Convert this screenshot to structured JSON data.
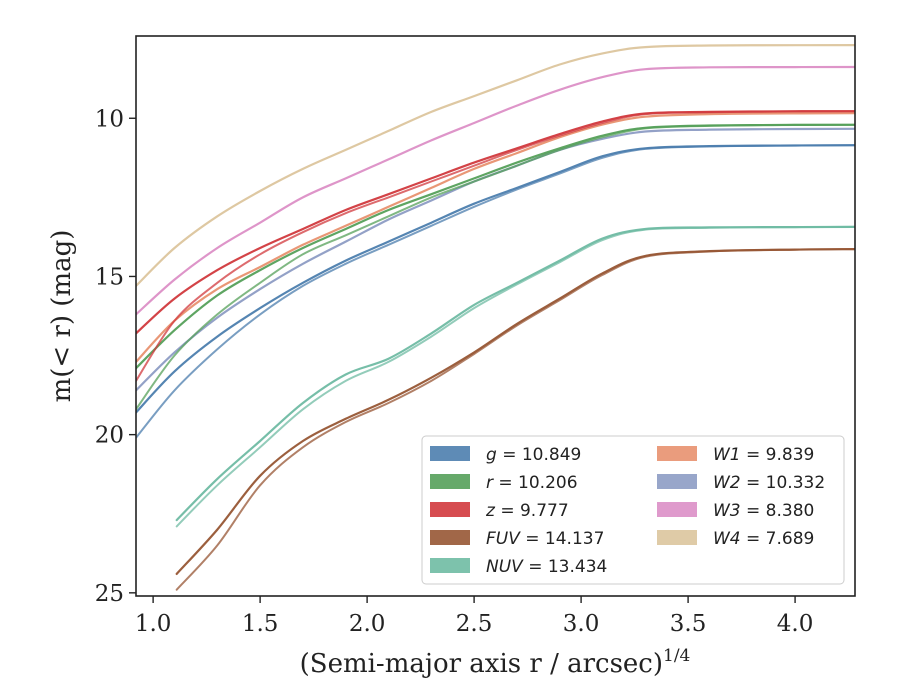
{
  "chart_data": {
    "type": "line",
    "xlabel": "(Semi-major axis r / arcsec)",
    "xlabel_superscript": "1/4",
    "ylabel": "m(< r) (mag)",
    "xlim": [
      0.92,
      4.28
    ],
    "ylim": [
      25.1,
      7.4
    ],
    "y_inverted": true,
    "grid": false,
    "legend_position": "lower-right",
    "x_ticks": [
      {
        "value": 1.0,
        "label": "1.0"
      },
      {
        "value": 1.5,
        "label": "1.5"
      },
      {
        "value": 2.0,
        "label": "2.0"
      },
      {
        "value": 2.5,
        "label": "2.5"
      },
      {
        "value": 3.0,
        "label": "3.0"
      },
      {
        "value": 3.5,
        "label": "3.5"
      },
      {
        "value": 4.0,
        "label": "4.0"
      }
    ],
    "y_ticks": [
      {
        "value": 10,
        "label": "10"
      },
      {
        "value": 15,
        "label": "15"
      },
      {
        "value": 20,
        "label": "20"
      },
      {
        "value": 25,
        "label": "25"
      }
    ],
    "series": [
      {
        "name": "g",
        "total": "10.849",
        "color": "#4c7eae",
        "x": [
          0.92,
          1.1,
          1.3,
          1.5,
          1.7,
          1.9,
          2.1,
          2.3,
          2.5,
          2.7,
          2.9,
          3.1,
          3.3,
          3.6,
          4.0,
          4.28
        ],
        "y": [
          19.3,
          18.0,
          16.9,
          16.0,
          15.2,
          14.5,
          13.9,
          13.3,
          12.7,
          12.2,
          11.7,
          11.2,
          10.95,
          10.88,
          10.86,
          10.85
        ],
        "y2": [
          20.1,
          18.6,
          17.3,
          16.2,
          15.3,
          14.6,
          14.0,
          13.4,
          12.8,
          12.25,
          11.75,
          11.25,
          10.97,
          10.89,
          10.86,
          10.85
        ]
      },
      {
        "name": "r",
        "total": "10.206",
        "color": "#55a05a",
        "x": [
          0.92,
          1.1,
          1.3,
          1.5,
          1.7,
          1.9,
          2.1,
          2.3,
          2.5,
          2.7,
          2.9,
          3.1,
          3.3,
          3.6,
          4.0,
          4.28
        ],
        "y": [
          17.9,
          16.7,
          15.6,
          14.8,
          14.1,
          13.5,
          12.9,
          12.4,
          11.9,
          11.4,
          10.95,
          10.55,
          10.3,
          10.23,
          10.21,
          10.206
        ],
        "y2": [
          19.2,
          17.5,
          16.2,
          15.2,
          14.3,
          13.7,
          13.1,
          12.5,
          12.0,
          11.5,
          11.0,
          10.6,
          10.32,
          10.24,
          10.21,
          10.206
        ]
      },
      {
        "name": "z",
        "total": "9.777",
        "color": "#d1393d",
        "x": [
          0.92,
          1.1,
          1.3,
          1.5,
          1.7,
          1.9,
          2.1,
          2.3,
          2.5,
          2.7,
          2.9,
          3.1,
          3.3,
          3.6,
          4.0,
          4.28
        ],
        "y": [
          16.8,
          15.7,
          14.8,
          14.1,
          13.5,
          12.9,
          12.4,
          11.9,
          11.4,
          10.95,
          10.5,
          10.1,
          9.85,
          9.8,
          9.78,
          9.777
        ],
        "y2": [
          18.3,
          16.4,
          15.2,
          14.3,
          13.6,
          13.0,
          12.5,
          12.0,
          11.5,
          11.0,
          10.55,
          10.15,
          9.87,
          9.81,
          9.78,
          9.777
        ]
      },
      {
        "name": "FUV",
        "total": "14.137",
        "color": "#975634",
        "x": [
          1.11,
          1.3,
          1.5,
          1.7,
          1.9,
          2.1,
          2.3,
          2.5,
          2.7,
          2.9,
          3.1,
          3.3,
          3.6,
          4.0,
          4.28
        ],
        "y": [
          24.4,
          23.0,
          21.3,
          20.2,
          19.5,
          18.9,
          18.2,
          17.4,
          16.5,
          15.7,
          14.9,
          14.35,
          14.2,
          14.15,
          14.137
        ],
        "y2": [
          24.9,
          23.5,
          21.6,
          20.4,
          19.6,
          19.0,
          18.3,
          17.45,
          16.55,
          15.75,
          14.95,
          14.38,
          14.21,
          14.15,
          14.137
        ]
      },
      {
        "name": "NUV",
        "total": "13.434",
        "color": "#6fbba3",
        "x": [
          1.11,
          1.3,
          1.5,
          1.7,
          1.9,
          2.1,
          2.3,
          2.5,
          2.7,
          2.9,
          3.1,
          3.3,
          3.6,
          4.0,
          4.28
        ],
        "y": [
          22.7,
          21.4,
          20.2,
          19.0,
          18.1,
          17.6,
          16.8,
          15.9,
          15.2,
          14.5,
          13.8,
          13.5,
          13.45,
          13.44,
          13.434
        ],
        "y2": [
          22.9,
          21.6,
          20.4,
          19.2,
          18.3,
          17.7,
          16.9,
          16.0,
          15.25,
          14.55,
          13.85,
          13.52,
          13.46,
          13.44,
          13.434
        ]
      },
      {
        "name": "W1",
        "total": "9.839",
        "color": "#e8916f",
        "x": [
          0.92,
          1.1,
          1.3,
          1.5,
          1.7,
          1.9,
          2.1,
          2.3,
          2.5,
          2.7,
          2.9,
          3.1,
          3.3,
          3.6,
          4.0,
          4.28
        ],
        "y": [
          17.7,
          16.4,
          15.4,
          14.7,
          14.0,
          13.4,
          12.8,
          12.2,
          11.6,
          11.1,
          10.6,
          10.2,
          9.95,
          9.87,
          9.845,
          9.839
        ],
        "y2": null
      },
      {
        "name": "W2",
        "total": "10.332",
        "color": "#8d9cc4",
        "x": [
          0.92,
          1.1,
          1.3,
          1.5,
          1.7,
          1.9,
          2.1,
          2.3,
          2.5,
          2.7,
          2.9,
          3.1,
          3.3,
          3.6,
          4.0,
          4.28
        ],
        "y": [
          18.6,
          17.4,
          16.3,
          15.4,
          14.6,
          13.9,
          13.2,
          12.6,
          12.0,
          11.5,
          11.0,
          10.65,
          10.42,
          10.36,
          10.34,
          10.332
        ],
        "y2": null
      },
      {
        "name": "W3",
        "total": "8.380",
        "color": "#dc8fc6",
        "x": [
          0.92,
          1.1,
          1.3,
          1.5,
          1.7,
          1.9,
          2.1,
          2.3,
          2.5,
          2.7,
          2.9,
          3.1,
          3.3,
          3.6,
          4.0,
          4.28
        ],
        "y": [
          16.2,
          15.1,
          14.1,
          13.3,
          12.5,
          11.9,
          11.3,
          10.7,
          10.15,
          9.6,
          9.1,
          8.7,
          8.45,
          8.39,
          8.383,
          8.38
        ],
        "y2": null
      },
      {
        "name": "W4",
        "total": "7.689",
        "color": "#dcc59d",
        "x": [
          0.92,
          1.1,
          1.3,
          1.5,
          1.7,
          1.9,
          2.1,
          2.3,
          2.5,
          2.7,
          2.9,
          3.1,
          3.3,
          3.6,
          4.0,
          4.28
        ],
        "y": [
          15.3,
          14.1,
          13.1,
          12.3,
          11.6,
          11.0,
          10.4,
          9.8,
          9.3,
          8.8,
          8.3,
          7.95,
          7.75,
          7.7,
          7.69,
          7.689
        ],
        "y2": null
      }
    ]
  }
}
